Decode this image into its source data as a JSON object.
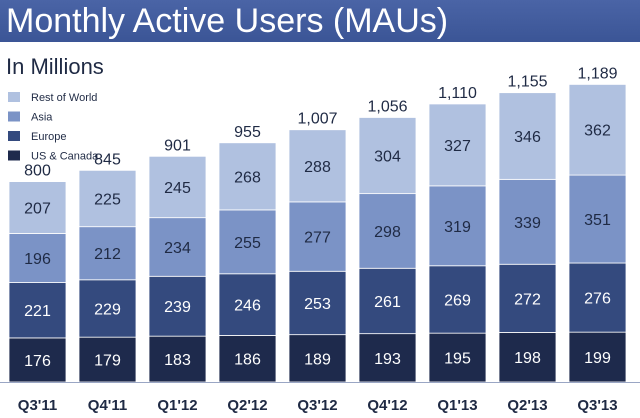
{
  "chart_data": {
    "type": "bar",
    "stacked": true,
    "title": "Monthly Active Users (MAUs)",
    "subtitle": "In Millions",
    "legend_position": "top-left",
    "categories": [
      "Q3'11",
      "Q4'11",
      "Q1'12",
      "Q2'12",
      "Q3'12",
      "Q4'12",
      "Q1'13",
      "Q2'13",
      "Q3'13"
    ],
    "totals": [
      "800",
      "845",
      "901",
      "955",
      "1,007",
      "1,056",
      "1,110",
      "1,155",
      "1,189"
    ],
    "series": [
      {
        "name": "US & Canada",
        "color": "#1e2a4c",
        "values": [
          176,
          179,
          183,
          186,
          189,
          193,
          195,
          198,
          199
        ]
      },
      {
        "name": "Europe",
        "color": "#344a7e",
        "values": [
          221,
          229,
          239,
          246,
          253,
          261,
          269,
          272,
          276
        ]
      },
      {
        "name": "Asia",
        "color": "#7b93c6",
        "values": [
          196,
          212,
          234,
          255,
          277,
          298,
          319,
          339,
          351
        ]
      },
      {
        "name": "Rest of World",
        "color": "#b0c1e0",
        "values": [
          207,
          225,
          245,
          268,
          288,
          304,
          327,
          346,
          362
        ]
      }
    ],
    "legend_order": [
      "Rest of World",
      "Asia",
      "Europe",
      "US & Canada"
    ],
    "grid": false,
    "ylim": [
      0,
      1189
    ]
  }
}
